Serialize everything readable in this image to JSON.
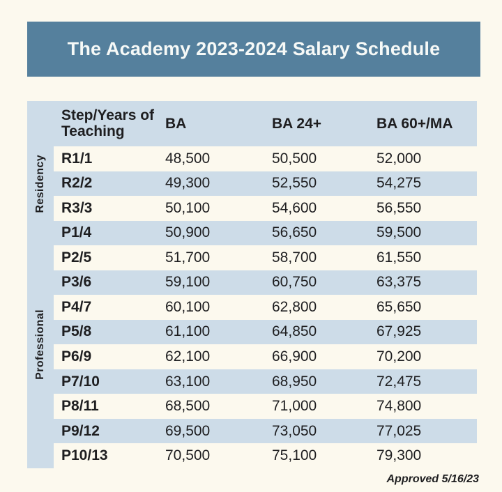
{
  "page": {
    "background_color": "#fcf9ee",
    "banner_color": "#55809d",
    "banner_text_color": "#f6f9f7",
    "stripe_blue": "#cddce8",
    "stripe_cream": "#fcf9ee",
    "text_color": "#1e1e20"
  },
  "banner": {
    "title": "The Academy 2023-2024 Salary Schedule"
  },
  "table": {
    "columns": [
      "Step/Years of Teaching",
      "BA",
      "BA 24+",
      "BA 60+/MA"
    ],
    "group_labels": {
      "residency": "Residency",
      "professional": "Professional"
    },
    "rows": [
      {
        "step": "R1/1",
        "ba": "48,500",
        "ba24": "50,500",
        "ba60": "52,000"
      },
      {
        "step": "R2/2",
        "ba": "49,300",
        "ba24": "52,550",
        "ba60": "54,275"
      },
      {
        "step": "R3/3",
        "ba": "50,100",
        "ba24": "54,600",
        "ba60": "56,550"
      },
      {
        "step": "P1/4",
        "ba": "50,900",
        "ba24": "56,650",
        "ba60": "59,500"
      },
      {
        "step": "P2/5",
        "ba": "51,700",
        "ba24": "58,700",
        "ba60": "61,550"
      },
      {
        "step": "P3/6",
        "ba": "59,100",
        "ba24": "60,750",
        "ba60": "63,375"
      },
      {
        "step": "P4/7",
        "ba": "60,100",
        "ba24": "62,800",
        "ba60": "65,650"
      },
      {
        "step": "P5/8",
        "ba": "61,100",
        "ba24": "64,850",
        "ba60": "67,925"
      },
      {
        "step": "P6/9",
        "ba": "62,100",
        "ba24": "66,900",
        "ba60": "70,200"
      },
      {
        "step": "P7/10",
        "ba": "63,100",
        "ba24": "68,950",
        "ba60": "72,475"
      },
      {
        "step": "P8/11",
        "ba": "68,500",
        "ba24": "71,000",
        "ba60": "74,800"
      },
      {
        "step": "P9/12",
        "ba": "69,500",
        "ba24": "73,050",
        "ba60": "77,025"
      },
      {
        "step": "P10/13",
        "ba": "70,500",
        "ba24": "75,100",
        "ba60": "79,300"
      }
    ]
  },
  "footer": {
    "approved": "Approved 5/16/23"
  },
  "chart_data": {
    "type": "table",
    "title": "The Academy 2023-2024 Salary Schedule",
    "columns": [
      "Step/Years of Teaching",
      "BA",
      "BA 24+",
      "BA 60+/MA"
    ],
    "row_groups": [
      {
        "group": "Residency",
        "steps": [
          "R1/1",
          "R2/2",
          "R3/3"
        ]
      },
      {
        "group": "Professional",
        "steps": [
          "P1/4",
          "P2/5",
          "P3/6",
          "P4/7",
          "P5/8",
          "P6/9",
          "P7/10",
          "P8/11",
          "P9/12",
          "P10/13"
        ]
      }
    ],
    "rows": [
      {
        "step": "R1/1",
        "BA": 48500,
        "BA_24plus": 50500,
        "BA_60plus_MA": 52000
      },
      {
        "step": "R2/2",
        "BA": 49300,
        "BA_24plus": 52550,
        "BA_60plus_MA": 54275
      },
      {
        "step": "R3/3",
        "BA": 50100,
        "BA_24plus": 54600,
        "BA_60plus_MA": 56550
      },
      {
        "step": "P1/4",
        "BA": 50900,
        "BA_24plus": 56650,
        "BA_60plus_MA": 59500
      },
      {
        "step": "P2/5",
        "BA": 51700,
        "BA_24plus": 58700,
        "BA_60plus_MA": 61550
      },
      {
        "step": "P3/6",
        "BA": 59100,
        "BA_24plus": 60750,
        "BA_60plus_MA": 63375
      },
      {
        "step": "P4/7",
        "BA": 60100,
        "BA_24plus": 62800,
        "BA_60plus_MA": 65650
      },
      {
        "step": "P5/8",
        "BA": 61100,
        "BA_24plus": 64850,
        "BA_60plus_MA": 67925
      },
      {
        "step": "P6/9",
        "BA": 62100,
        "BA_24plus": 66900,
        "BA_60plus_MA": 70200
      },
      {
        "step": "P7/10",
        "BA": 63100,
        "BA_24plus": 68950,
        "BA_60plus_MA": 72475
      },
      {
        "step": "P8/11",
        "BA": 68500,
        "BA_24plus": 71000,
        "BA_60plus_MA": 74800
      },
      {
        "step": "P9/12",
        "BA": 69500,
        "BA_24plus": 73050,
        "BA_60plus_MA": 77025
      },
      {
        "step": "P10/13",
        "BA": 70500,
        "BA_24plus": 75100,
        "BA_60plus_MA": 79300
      }
    ],
    "annotations": [
      "Approved 5/16/23"
    ],
    "layout": {
      "striped_rows": true,
      "first_row_stripe": "cream",
      "group_labels_rotated": true
    }
  }
}
